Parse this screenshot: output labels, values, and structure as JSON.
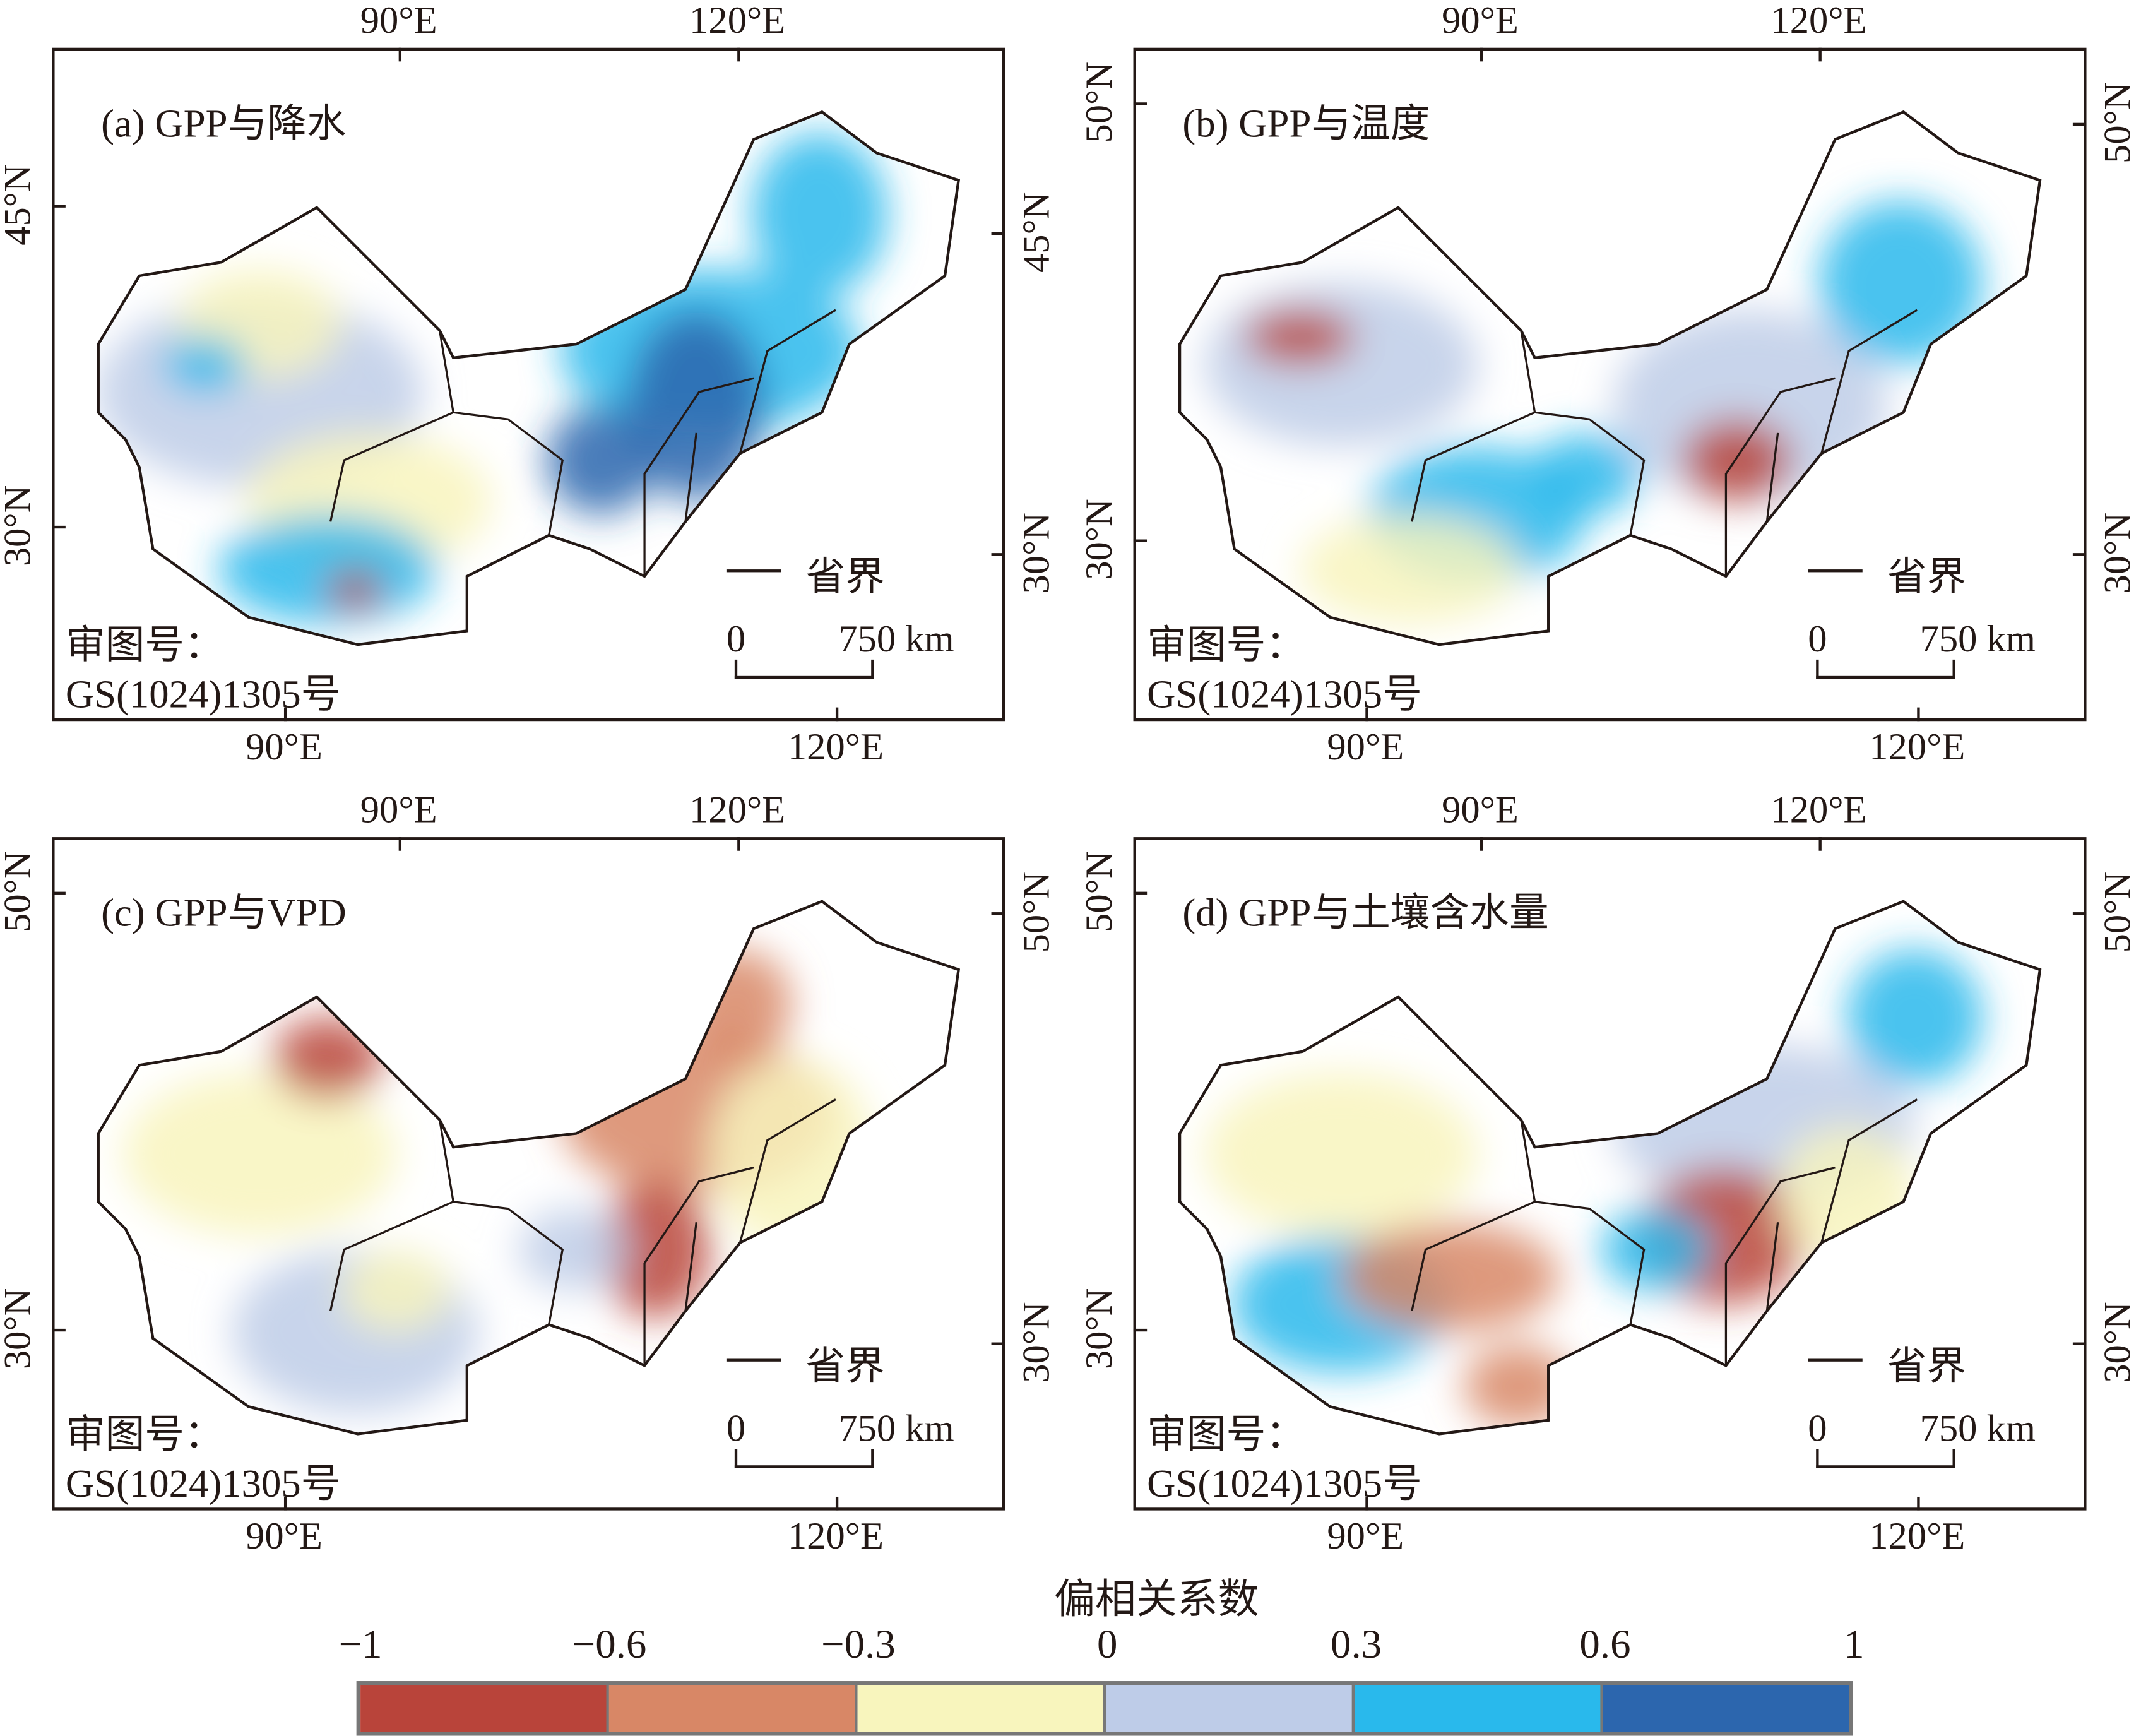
{
  "panels": [
    {
      "title": "(a) GPP与降水",
      "top_lon": [
        "90°E",
        "120°E"
      ],
      "bottom_lon": [
        "90°E",
        "120°E"
      ],
      "left_lat": [
        "45°N",
        "30°N"
      ],
      "right_lat": [
        "45°N",
        "30°N"
      ],
      "approval_label": "审图号：",
      "approval_number": "GS(1024)1305号",
      "legend_label": "省界",
      "scale_start": "0",
      "scale_end": "750 km"
    },
    {
      "title": "(b) GPP与温度",
      "top_lon": [
        "90°E",
        "120°E"
      ],
      "bottom_lon": [
        "90°E",
        "120°E"
      ],
      "left_lat": [
        "50°N",
        "30°N"
      ],
      "right_lat": [
        "50°N",
        "30°N"
      ],
      "approval_label": "审图号：",
      "approval_number": "GS(1024)1305号",
      "legend_label": "省界",
      "scale_start": "0",
      "scale_end": "750 km"
    },
    {
      "title": "(c) GPP与VPD",
      "top_lon": [
        "90°E",
        "120°E"
      ],
      "bottom_lon": [
        "90°E",
        "120°E"
      ],
      "left_lat": [
        "50°N",
        "30°N"
      ],
      "right_lat": [
        "50°N",
        "30°N"
      ],
      "approval_label": "审图号：",
      "approval_number": "GS(1024)1305号",
      "legend_label": "省界",
      "scale_start": "0",
      "scale_end": "750 km"
    },
    {
      "title": "(d) GPP与土壤含水量",
      "top_lon": [
        "90°E",
        "120°E"
      ],
      "bottom_lon": [
        "90°E",
        "120°E"
      ],
      "left_lat": [
        "50°N",
        "30°N"
      ],
      "right_lat": [
        "50°N",
        "30°N"
      ],
      "approval_label": "审图号：",
      "approval_number": "GS(1024)1305号",
      "legend_label": "省界",
      "scale_start": "0",
      "scale_end": "750 km"
    }
  ],
  "colorbar": {
    "title": "偏相关系数",
    "ticks": [
      "−1",
      "−0.6",
      "−0.3",
      "0",
      "0.3",
      "0.6",
      "1"
    ],
    "colors": [
      "#b9443a",
      "#d88766",
      "#f8f5bd",
      "#becce8",
      "#29b9ec",
      "#2c66ae"
    ]
  }
}
